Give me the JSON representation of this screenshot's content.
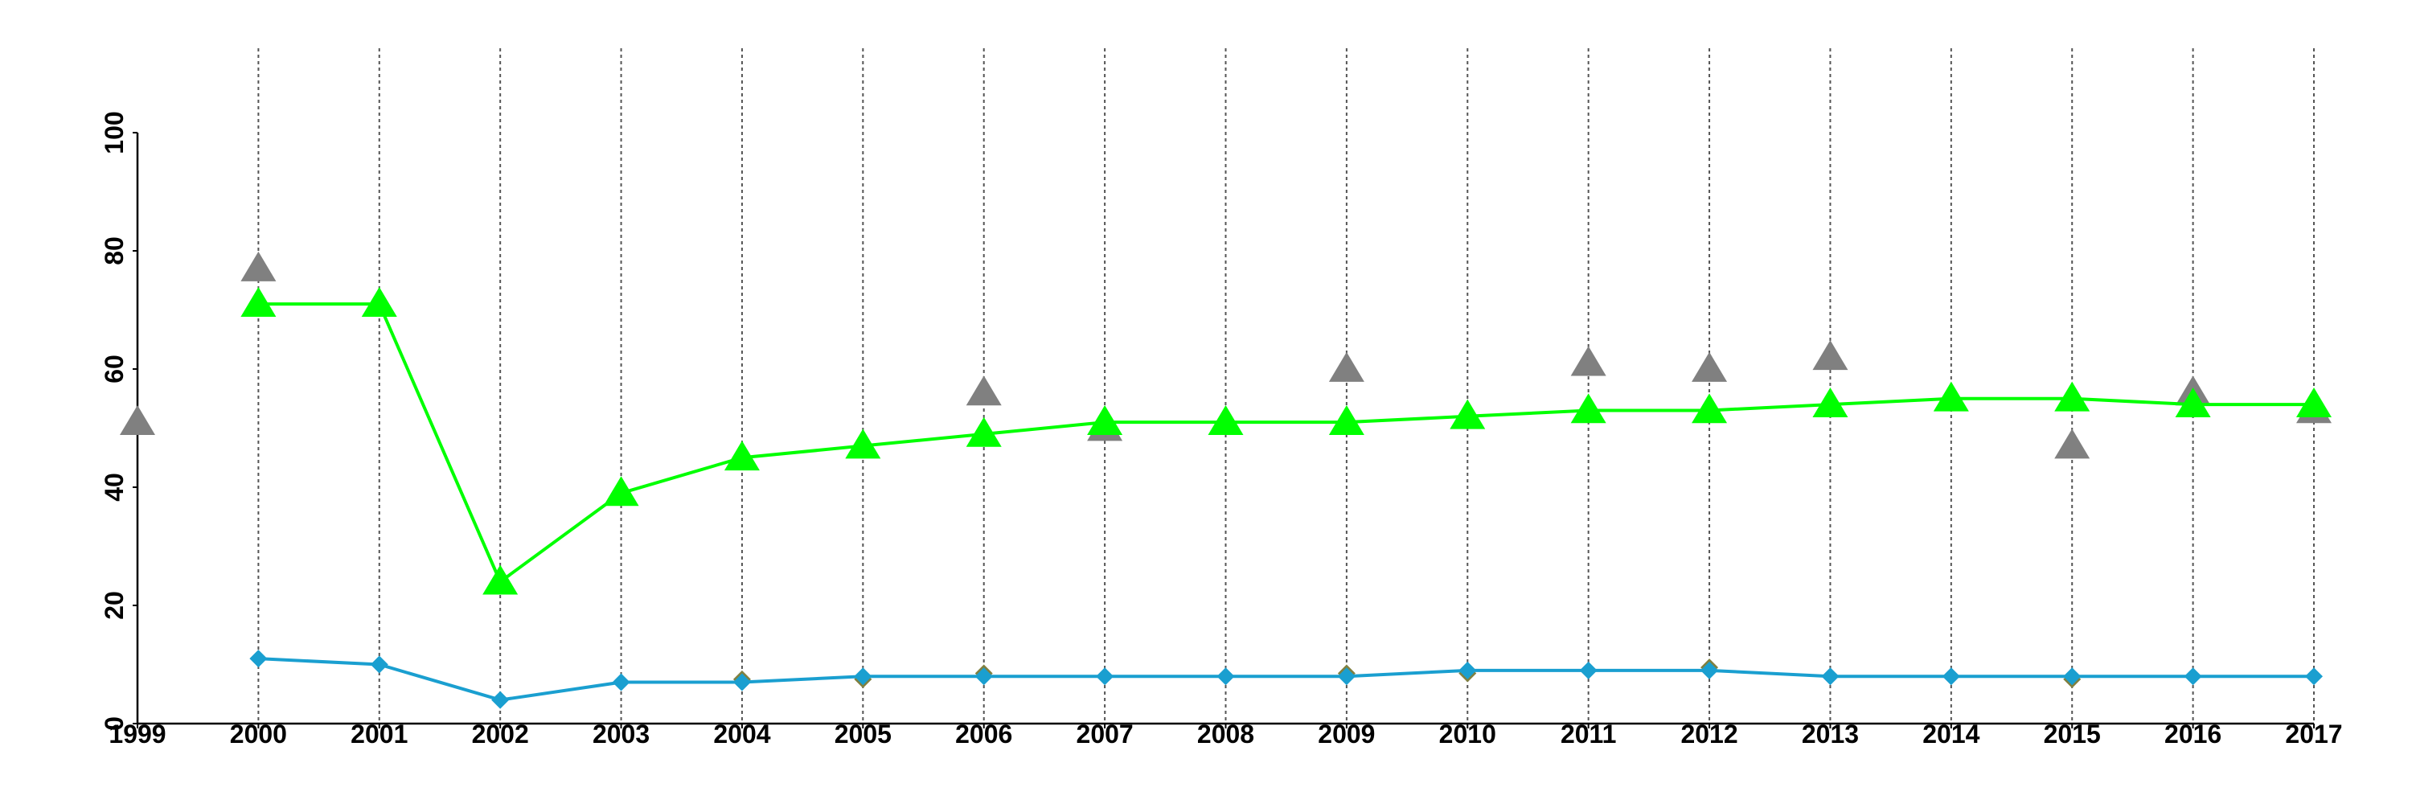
{
  "chart_data": {
    "type": "line",
    "x": [
      1999,
      2000,
      2001,
      2002,
      2003,
      2004,
      2005,
      2006,
      2007,
      2008,
      2009,
      2010,
      2011,
      2012,
      2013,
      2014,
      2015,
      2016,
      2017
    ],
    "x_tick_labels": [
      "1999",
      "2000",
      "2001",
      "2002",
      "2003",
      "2004",
      "2005",
      "2006",
      "2007",
      "2008",
      "2009",
      "2010",
      "2011",
      "2012",
      "2013",
      "2014",
      "2015",
      "2016",
      "2017"
    ],
    "y_tick_labels": [
      "0",
      "20",
      "40",
      "60",
      "80",
      "100"
    ],
    "ylim": [
      0,
      100
    ],
    "grid": "vertical-dotted",
    "legend": "none",
    "series": [
      {
        "marker": "triangle",
        "color": "#808080",
        "line": false,
        "values": [
          51,
          77,
          null,
          null,
          null,
          null,
          null,
          56,
          50,
          null,
          60,
          null,
          61,
          60,
          62,
          null,
          47,
          56,
          53
        ]
      },
      {
        "marker": "triangle",
        "color": "#00ff00",
        "line": true,
        "values": [
          null,
          71,
          71,
          24,
          39,
          45,
          47,
          49,
          51,
          51,
          51,
          52,
          53,
          53,
          54,
          55,
          55,
          54,
          54
        ]
      },
      {
        "marker": "diamond",
        "color": "#808040",
        "line": false,
        "values": [
          null,
          null,
          null,
          null,
          null,
          7.5,
          7.5,
          8.5,
          null,
          null,
          8.5,
          8.5,
          null,
          9.5,
          null,
          null,
          7.5,
          null,
          null
        ]
      },
      {
        "marker": "diamond",
        "color": "#1a9fd0",
        "line": true,
        "values": [
          null,
          11,
          10,
          4,
          7,
          7,
          8,
          8,
          8,
          8,
          8,
          9,
          9,
          9,
          8,
          8,
          8,
          8,
          8
        ]
      }
    ]
  }
}
